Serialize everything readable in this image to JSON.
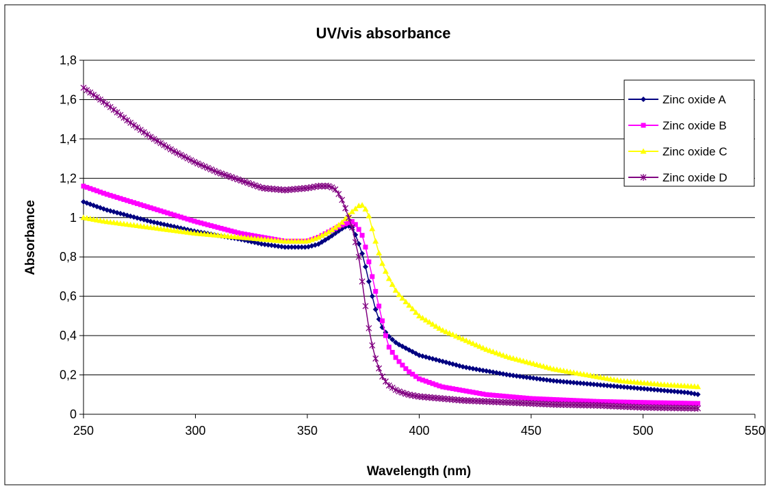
{
  "chart_data": {
    "type": "line",
    "title": "UV/vis absorbance",
    "xlabel": "Wavelength (nm)",
    "ylabel": "Absorbance",
    "xlim": [
      250,
      550
    ],
    "ylim": [
      0,
      1.8
    ],
    "x_ticks": [
      "250",
      "300",
      "350",
      "400",
      "450",
      "500",
      "550"
    ],
    "y_ticks": [
      "0",
      "0,2",
      "0,4",
      "0,6",
      "0,8",
      "1",
      "1,2",
      "1,4",
      "1,6",
      "1,8"
    ],
    "grid": "horizontal",
    "legend_position": "top-right",
    "marker_step_nm": 1.5,
    "series": [
      {
        "name": "Zinc oxide A",
        "color": "#000080",
        "marker": "diamond",
        "points": [
          [
            250,
            1.08
          ],
          [
            260,
            1.04
          ],
          [
            280,
            0.98
          ],
          [
            300,
            0.93
          ],
          [
            320,
            0.89
          ],
          [
            330,
            0.865
          ],
          [
            340,
            0.85
          ],
          [
            350,
            0.85
          ],
          [
            355,
            0.865
          ],
          [
            360,
            0.9
          ],
          [
            365,
            0.94
          ],
          [
            368,
            0.96
          ],
          [
            370,
            0.95
          ],
          [
            372,
            0.9
          ],
          [
            375,
            0.8
          ],
          [
            378,
            0.65
          ],
          [
            380,
            0.55
          ],
          [
            383,
            0.45
          ],
          [
            386,
            0.4
          ],
          [
            390,
            0.36
          ],
          [
            395,
            0.33
          ],
          [
            400,
            0.3
          ],
          [
            410,
            0.27
          ],
          [
            420,
            0.24
          ],
          [
            430,
            0.22
          ],
          [
            440,
            0.2
          ],
          [
            450,
            0.185
          ],
          [
            460,
            0.17
          ],
          [
            480,
            0.15
          ],
          [
            500,
            0.13
          ],
          [
            520,
            0.11
          ],
          [
            525,
            0.1
          ]
        ]
      },
      {
        "name": "Zinc oxide B",
        "color": "#ff00ff",
        "marker": "square",
        "points": [
          [
            250,
            1.16
          ],
          [
            260,
            1.12
          ],
          [
            280,
            1.05
          ],
          [
            300,
            0.98
          ],
          [
            320,
            0.92
          ],
          [
            340,
            0.88
          ],
          [
            350,
            0.88
          ],
          [
            355,
            0.9
          ],
          [
            360,
            0.93
          ],
          [
            365,
            0.96
          ],
          [
            370,
            0.98
          ],
          [
            372,
            0.96
          ],
          [
            375,
            0.9
          ],
          [
            378,
            0.75
          ],
          [
            380,
            0.65
          ],
          [
            383,
            0.5
          ],
          [
            386,
            0.35
          ],
          [
            390,
            0.28
          ],
          [
            395,
            0.22
          ],
          [
            400,
            0.18
          ],
          [
            410,
            0.14
          ],
          [
            420,
            0.12
          ],
          [
            430,
            0.1
          ],
          [
            440,
            0.09
          ],
          [
            450,
            0.08
          ],
          [
            460,
            0.075
          ],
          [
            480,
            0.065
          ],
          [
            500,
            0.06
          ],
          [
            525,
            0.055
          ]
        ]
      },
      {
        "name": "Zinc oxide C",
        "color": "#ffff00",
        "marker": "triangle",
        "points": [
          [
            250,
            1.0
          ],
          [
            260,
            0.98
          ],
          [
            280,
            0.95
          ],
          [
            300,
            0.92
          ],
          [
            320,
            0.9
          ],
          [
            340,
            0.88
          ],
          [
            350,
            0.88
          ],
          [
            355,
            0.9
          ],
          [
            360,
            0.93
          ],
          [
            365,
            0.97
          ],
          [
            370,
            1.03
          ],
          [
            374,
            1.07
          ],
          [
            377,
            1.03
          ],
          [
            380,
            0.9
          ],
          [
            383,
            0.78
          ],
          [
            386,
            0.7
          ],
          [
            390,
            0.62
          ],
          [
            395,
            0.56
          ],
          [
            400,
            0.5
          ],
          [
            410,
            0.43
          ],
          [
            420,
            0.38
          ],
          [
            430,
            0.33
          ],
          [
            440,
            0.29
          ],
          [
            450,
            0.26
          ],
          [
            460,
            0.23
          ],
          [
            470,
            0.21
          ],
          [
            480,
            0.19
          ],
          [
            490,
            0.17
          ],
          [
            500,
            0.16
          ],
          [
            510,
            0.15
          ],
          [
            525,
            0.14
          ]
        ]
      },
      {
        "name": "Zinc oxide D",
        "color": "#800080",
        "marker": "star",
        "points": [
          [
            250,
            1.66
          ],
          [
            260,
            1.58
          ],
          [
            270,
            1.49
          ],
          [
            280,
            1.41
          ],
          [
            290,
            1.34
          ],
          [
            300,
            1.28
          ],
          [
            310,
            1.23
          ],
          [
            320,
            1.19
          ],
          [
            330,
            1.15
          ],
          [
            340,
            1.14
          ],
          [
            350,
            1.15
          ],
          [
            355,
            1.16
          ],
          [
            360,
            1.16
          ],
          [
            363,
            1.14
          ],
          [
            366,
            1.08
          ],
          [
            370,
            0.95
          ],
          [
            373,
            0.8
          ],
          [
            376,
            0.55
          ],
          [
            378,
            0.4
          ],
          [
            380,
            0.3
          ],
          [
            383,
            0.2
          ],
          [
            386,
            0.15
          ],
          [
            390,
            0.12
          ],
          [
            395,
            0.1
          ],
          [
            400,
            0.09
          ],
          [
            420,
            0.07
          ],
          [
            440,
            0.06
          ],
          [
            460,
            0.05
          ],
          [
            480,
            0.045
          ],
          [
            500,
            0.035
          ],
          [
            525,
            0.03
          ]
        ]
      }
    ]
  }
}
